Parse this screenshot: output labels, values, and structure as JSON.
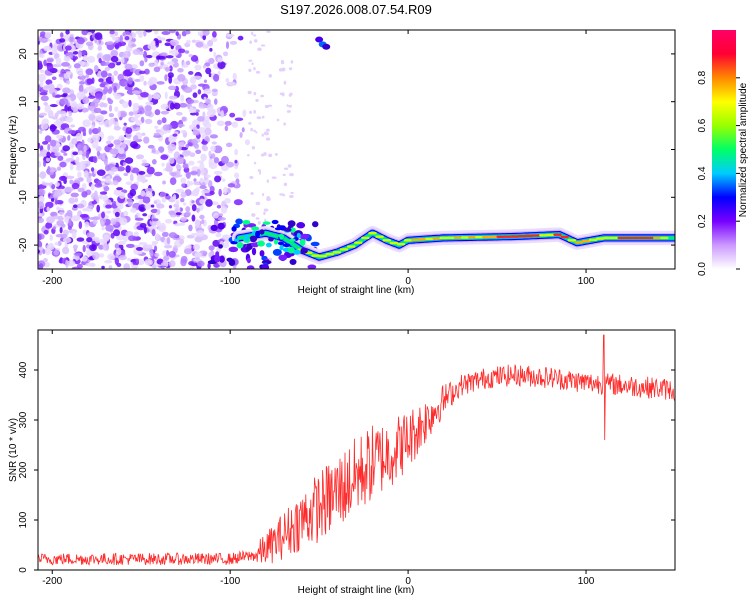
{
  "title": "S197.2026.008.07.54.R09",
  "chart_data": [
    {
      "type": "heatmap",
      "name": "spectrogram",
      "xlabel": "Height of straight line (km)",
      "ylabel": "Frequency (Hz)",
      "xlim": [
        -208,
        150
      ],
      "ylim": [
        -25,
        25
      ],
      "xticks": [
        -200,
        -100,
        0,
        100
      ],
      "yticks": [
        -20,
        -10,
        0,
        10,
        20
      ],
      "colorbar": {
        "label": "Normalized spectral amplitude",
        "range": [
          0,
          1
        ],
        "ticks": [
          0.0,
          0.2,
          0.4,
          0.6,
          0.8
        ],
        "colors": [
          "#ffffff",
          "#cc99ff",
          "#7700ff",
          "#0000ff",
          "#00ccff",
          "#00ff66",
          "#99ff00",
          "#ffff00",
          "#ff8800",
          "#ff0033",
          "#ff0066"
        ]
      },
      "ridge": [
        [
          -95,
          -18.5
        ],
        [
          -80,
          -17.5
        ],
        [
          -70,
          -18.5
        ],
        [
          -60,
          -21
        ],
        [
          -50,
          -22.5
        ],
        [
          -40,
          -21.5
        ],
        [
          -30,
          -20
        ],
        [
          -20,
          -17.5
        ],
        [
          -12,
          -19
        ],
        [
          -5,
          -20
        ],
        [
          0,
          -19
        ],
        [
          20,
          -18.5
        ],
        [
          60,
          -18.2
        ],
        [
          85,
          -17.8
        ],
        [
          95,
          -19.5
        ],
        [
          110,
          -18.5
        ],
        [
          150,
          -18.5
        ]
      ]
    },
    {
      "type": "line",
      "name": "snr",
      "xlabel": "Height of straight line (km)",
      "ylabel": "SNR (10 * v/v)",
      "xlim": [
        -208,
        150
      ],
      "ylim": [
        0,
        480
      ],
      "xticks": [
        -200,
        -100,
        0,
        100
      ],
      "yticks": [
        0,
        100,
        200,
        300,
        400
      ],
      "color": "#ff2a2a",
      "trend": [
        [
          -208,
          22
        ],
        [
          -100,
          22
        ],
        [
          -85,
          30
        ],
        [
          -75,
          55
        ],
        [
          -60,
          100
        ],
        [
          -45,
          140
        ],
        [
          -30,
          185
        ],
        [
          -20,
          215
        ],
        [
          -10,
          235
        ],
        [
          0,
          260
        ],
        [
          10,
          300
        ],
        [
          20,
          340
        ],
        [
          30,
          370
        ],
        [
          45,
          385
        ],
        [
          60,
          390
        ],
        [
          80,
          385
        ],
        [
          100,
          375
        ],
        [
          120,
          370
        ],
        [
          150,
          360
        ]
      ],
      "spike": [
        110,
        470
      ],
      "dip": [
        110,
        260
      ]
    }
  ]
}
